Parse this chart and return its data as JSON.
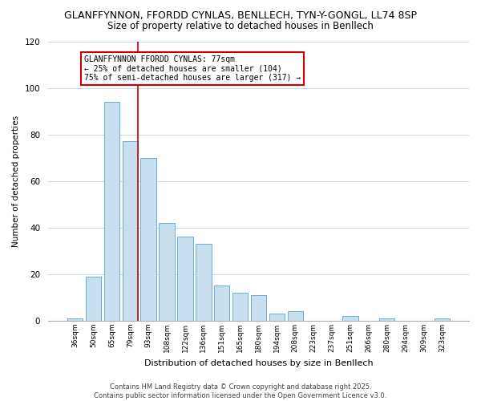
{
  "title": "GLANFFYNNON, FFORDD CYNLAS, BENLLECH, TYN-Y-GONGL, LL74 8SP",
  "subtitle": "Size of property relative to detached houses in Benllech",
  "xlabel": "Distribution of detached houses by size in Benllech",
  "ylabel": "Number of detached properties",
  "bar_color": "#c8dff0",
  "bar_edge_color": "#6aafd6",
  "background_color": "#ffffff",
  "grid_color": "#c8d8e8",
  "categories": [
    "36sqm",
    "50sqm",
    "65sqm",
    "79sqm",
    "93sqm",
    "108sqm",
    "122sqm",
    "136sqm",
    "151sqm",
    "165sqm",
    "180sqm",
    "194sqm",
    "208sqm",
    "223sqm",
    "237sqm",
    "251sqm",
    "266sqm",
    "280sqm",
    "294sqm",
    "309sqm",
    "323sqm"
  ],
  "values": [
    1,
    19,
    94,
    77,
    70,
    42,
    36,
    33,
    15,
    12,
    11,
    3,
    4,
    0,
    0,
    2,
    0,
    1,
    0,
    0,
    1
  ],
  "ylim": [
    0,
    120
  ],
  "yticks": [
    0,
    20,
    40,
    60,
    80,
    100,
    120
  ],
  "marker_idx": 3,
  "marker_color": "#cc0000",
  "annotation_title": "GLANFFYNNON FFORDD CYNLAS: 77sqm",
  "annotation_line1": "← 25% of detached houses are smaller (104)",
  "annotation_line2": "75% of semi-detached houses are larger (317) →",
  "annotation_border_color": "#cc0000",
  "footer_line1": "Contains HM Land Registry data © Crown copyright and database right 2025.",
  "footer_line2": "Contains public sector information licensed under the Open Government Licence v3.0."
}
